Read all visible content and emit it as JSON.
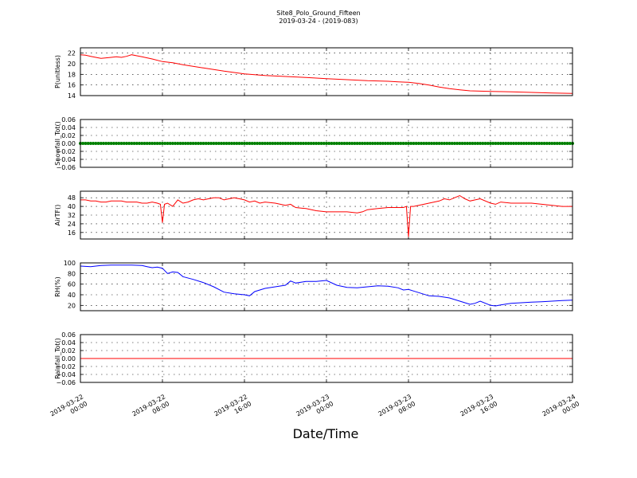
{
  "figure": {
    "title": "Site8_Polo_Ground_Fifteen",
    "subtitle": "2019-03-24 - (2019-083)",
    "xlabel": "Date/Time"
  },
  "chart_data": [
    {
      "type": "line",
      "ylabel": "P(unitless)",
      "ylim": [
        14,
        23
      ],
      "yticks": [
        14,
        16,
        18,
        20,
        22
      ],
      "ytick_labels": [
        "14",
        "16",
        "18",
        "20",
        "22"
      ],
      "xlim": [
        0,
        48
      ],
      "xticks": [
        0,
        8,
        16,
        24,
        32,
        40,
        48
      ],
      "xtick_labels": [
        [
          "2019-03-22",
          "00:00"
        ],
        [
          "2019-03-22",
          "08:00"
        ],
        [
          "2019-03-22",
          "16:00"
        ],
        [
          "2019-03-23",
          "00:00"
        ],
        [
          "2019-03-23",
          "08:00"
        ],
        [
          "2019-03-23",
          "16:00"
        ],
        [
          "2019-03-24",
          "00:00"
        ]
      ],
      "grid": true,
      "series": [
        {
          "color": "#ff0000",
          "marker": "none",
          "x": [
            0,
            0.5,
            1,
            1.5,
            2,
            3,
            3.5,
            4,
            4.5,
            5,
            5.5,
            6,
            7,
            8,
            9,
            10,
            12,
            14,
            16,
            18,
            20,
            22,
            24,
            26,
            28,
            30,
            31,
            32,
            33,
            34,
            35,
            36,
            37,
            38,
            40,
            42,
            44,
            46,
            48
          ],
          "y": [
            21.7,
            21.6,
            21.4,
            21.2,
            21.0,
            21.2,
            21.3,
            21.2,
            21.4,
            21.7,
            21.5,
            21.3,
            20.9,
            20.4,
            20.2,
            19.8,
            19.2,
            18.6,
            18.1,
            17.8,
            17.6,
            17.4,
            17.2,
            17.0,
            16.8,
            16.7,
            16.6,
            16.5,
            16.3,
            16.0,
            15.6,
            15.3,
            15.1,
            14.9,
            14.8,
            14.7,
            14.6,
            14.5,
            14.4
          ]
        }
      ]
    },
    {
      "type": "scatter",
      "ylabel": "Snowfall_Tot()",
      "ylim": [
        -0.06,
        0.06
      ],
      "yticks": [
        -0.06,
        -0.04,
        -0.02,
        0.0,
        0.02,
        0.04,
        0.06
      ],
      "ytick_labels": [
        "−0.06",
        "−0.04",
        "−0.02",
        "0.00",
        "0.02",
        "0.04",
        "0.06"
      ],
      "xlim": [
        0,
        48
      ],
      "xticks": [
        0,
        8,
        16,
        24,
        32,
        40,
        48
      ],
      "grid": true,
      "series": [
        {
          "color": "#008000",
          "marker": "dot",
          "x_range": [
            0,
            48
          ],
          "x_step": 0.25,
          "y_constant": 0
        }
      ]
    },
    {
      "type": "line",
      "ylabel": "AirTF()",
      "ylim": [
        10,
        54
      ],
      "yticks": [
        16,
        24,
        32,
        40,
        48
      ],
      "ytick_labels": [
        "16",
        "24",
        "32",
        "40",
        "48"
      ],
      "xlim": [
        0,
        48
      ],
      "xticks": [
        0,
        8,
        16,
        24,
        32,
        40,
        48
      ],
      "grid": true,
      "series": [
        {
          "color": "#ff0000",
          "marker": "none",
          "x": [
            0,
            0.5,
            1,
            1.5,
            2,
            2.5,
            3,
            3.5,
            4,
            4.5,
            5,
            5.5,
            6,
            6.5,
            7,
            7.5,
            7.8,
            8.0,
            8.2,
            8.5,
            9,
            9.5,
            10,
            10.5,
            11,
            11.5,
            12,
            12.5,
            13,
            13.5,
            14,
            14.5,
            15,
            15.5,
            16,
            16.5,
            17,
            17.5,
            18,
            19,
            20,
            20.5,
            21,
            22,
            23,
            24,
            25,
            26,
            27,
            27.5,
            28,
            29,
            30,
            31,
            31.5,
            31.8,
            32.0,
            32.2,
            32.5,
            33,
            34,
            35,
            35.5,
            36,
            36.5,
            37,
            37.5,
            38,
            38.5,
            39,
            40,
            40.5,
            41,
            42,
            43,
            44,
            45,
            46,
            47,
            48
          ],
          "y": [
            46,
            46,
            45,
            45,
            44,
            44,
            45,
            45,
            45,
            44,
            44,
            44,
            43,
            43,
            44,
            43,
            42,
            25,
            42,
            43,
            40,
            46,
            43,
            44,
            46,
            47,
            46,
            47,
            48,
            48,
            46,
            47,
            48,
            47,
            46,
            44,
            45,
            43,
            44,
            43,
            41,
            42,
            39,
            38,
            36,
            35,
            35,
            35,
            34,
            35,
            37,
            38,
            39,
            39,
            39,
            40,
            12,
            40,
            40,
            41,
            43,
            45,
            47,
            46,
            48,
            50,
            47,
            45,
            46,
            47,
            43,
            42,
            44,
            43,
            43,
            43,
            42,
            41,
            40,
            40
          ]
        }
      ]
    },
    {
      "type": "line",
      "ylabel": "RH(%)",
      "ylim": [
        10,
        100
      ],
      "yticks": [
        20,
        40,
        60,
        80,
        100
      ],
      "ytick_labels": [
        "20",
        "40",
        "60",
        "80",
        "100"
      ],
      "xlim": [
        0,
        48
      ],
      "xticks": [
        0,
        8,
        16,
        24,
        32,
        40,
        48
      ],
      "grid": true,
      "series": [
        {
          "color": "#0000ff",
          "marker": "none",
          "x": [
            0,
            1,
            2,
            3,
            4,
            5,
            6,
            6.5,
            7,
            7.5,
            8,
            8.5,
            9,
            9.5,
            10,
            11,
            12,
            13,
            14,
            15,
            16,
            16.5,
            17,
            18,
            19,
            20,
            20.5,
            21,
            22,
            23,
            24,
            25,
            26,
            27,
            28,
            29,
            30,
            31,
            31.5,
            32,
            32.5,
            33,
            34,
            35,
            36,
            37,
            38,
            38.5,
            39,
            40,
            40.5,
            41,
            42,
            43,
            44,
            45,
            46,
            47,
            48
          ],
          "y": [
            94,
            93,
            95,
            96,
            96,
            96,
            95,
            93,
            91,
            92,
            90,
            80,
            83,
            82,
            74,
            69,
            63,
            55,
            45,
            42,
            40,
            38,
            46,
            52,
            55,
            58,
            66,
            62,
            65,
            65,
            67,
            58,
            54,
            53,
            55,
            57,
            56,
            53,
            49,
            50,
            47,
            44,
            38,
            37,
            34,
            28,
            22,
            24,
            28,
            20,
            19,
            21,
            24,
            25,
            26,
            27,
            28,
            29,
            30
          ]
        }
      ]
    },
    {
      "type": "line",
      "ylabel": "Rainfall_Tot()",
      "ylim": [
        -0.06,
        0.06
      ],
      "yticks": [
        -0.06,
        -0.04,
        -0.02,
        0.0,
        0.02,
        0.04,
        0.06
      ],
      "ytick_labels": [
        "−0.06",
        "−0.04",
        "−0.02",
        "0.00",
        "0.02",
        "0.04",
        "0.06"
      ],
      "xlim": [
        0,
        48
      ],
      "xticks": [
        0,
        8,
        16,
        24,
        32,
        40,
        48
      ],
      "grid": true,
      "series": [
        {
          "color": "#ff0000",
          "marker": "none",
          "x": [
            0,
            48
          ],
          "y": [
            0,
            0
          ]
        }
      ]
    }
  ]
}
